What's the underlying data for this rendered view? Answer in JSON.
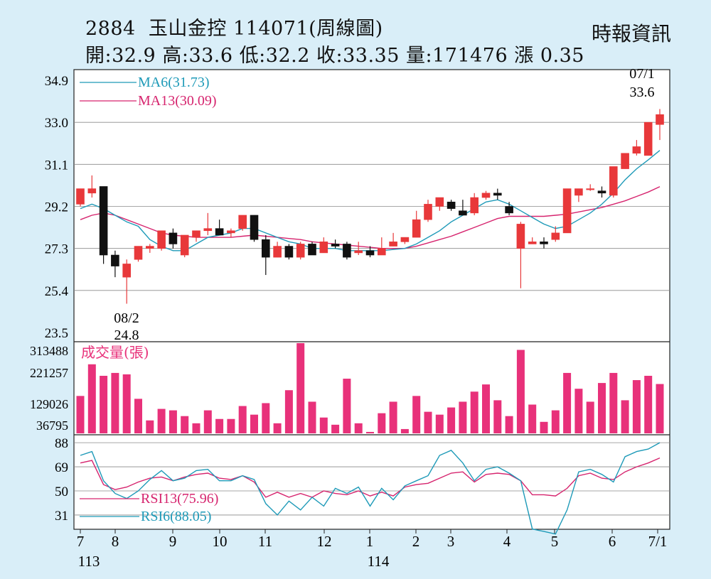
{
  "header": {
    "code": "2884",
    "name": "玉山金控",
    "date_code": "114071",
    "chart_kind": "(周線圖)",
    "source": "時報資訊",
    "open_label": "開:",
    "open": "32.9",
    "high_label": "高:",
    "high": "33.6",
    "low_label": "低:",
    "low": "32.2",
    "close_label": "收:",
    "close": "33.35",
    "volume_label": "量:",
    "volume": "171476",
    "change_label": "漲",
    "change": "0.35"
  },
  "colors": {
    "background": "#d9eef8",
    "plot_bg": "#ffffff",
    "up": "#e8383a",
    "down": "#111111",
    "volume": "#e8317a",
    "ma6": "#1e9ab8",
    "ma13": "#d6246e",
    "rsi13": "#d6246e",
    "rsi6": "#1e9ab8",
    "grid": "#8a8a8a"
  },
  "chart_data": [
    {
      "type": "candlestick",
      "title": "2884 玉山金控 114071(周線圖)",
      "ylim": [
        23.5,
        34.9
      ],
      "yticks": [
        "34.9",
        "33.0",
        "31.1",
        "29.2",
        "27.3",
        "25.4",
        "23.5"
      ],
      "x_month_labels": [
        "7",
        "8",
        "9",
        "10",
        "11",
        "12",
        "1",
        "2",
        "3",
        "4",
        "5",
        "6",
        "7/1"
      ],
      "x_year_labels": [
        "113",
        "114"
      ],
      "legend": [
        {
          "label": "MA6(31.73)",
          "color": "#1e9ab8"
        },
        {
          "label": "MA13(30.09)",
          "color": "#d6246e"
        }
      ],
      "annotations": [
        {
          "date": "07/1",
          "value": "33.6",
          "note": "high"
        },
        {
          "date": "08/2",
          "value": "24.8",
          "note": "low"
        }
      ],
      "ohlc": [
        [
          29.3,
          30.0,
          29.2,
          30.0
        ],
        [
          29.8,
          30.6,
          29.6,
          30.0
        ],
        [
          30.1,
          30.1,
          26.6,
          27.0
        ],
        [
          27.0,
          27.2,
          26.0,
          26.5
        ],
        [
          26.0,
          26.8,
          24.8,
          26.6
        ],
        [
          26.8,
          27.4,
          26.7,
          27.4
        ],
        [
          27.3,
          27.5,
          27.1,
          27.4
        ],
        [
          27.3,
          28.1,
          27.2,
          28.1
        ],
        [
          28.0,
          28.2,
          27.3,
          27.5
        ],
        [
          27.0,
          27.9,
          26.9,
          27.9
        ],
        [
          27.8,
          28.1,
          27.6,
          28.1
        ],
        [
          28.1,
          28.9,
          27.9,
          28.2
        ],
        [
          28.2,
          28.6,
          27.9,
          27.9
        ],
        [
          28.0,
          28.2,
          27.8,
          28.1
        ],
        [
          28.2,
          28.8,
          28.1,
          28.8
        ],
        [
          28.8,
          28.8,
          27.6,
          27.7
        ],
        [
          27.7,
          27.9,
          26.1,
          26.9
        ],
        [
          26.9,
          27.6,
          26.9,
          27.4
        ],
        [
          27.4,
          27.5,
          26.8,
          26.9
        ],
        [
          26.9,
          27.6,
          26.8,
          27.5
        ],
        [
          27.5,
          27.6,
          27.0,
          27.0
        ],
        [
          27.1,
          27.8,
          27.1,
          27.6
        ],
        [
          27.5,
          27.7,
          27.3,
          27.4
        ],
        [
          27.5,
          27.6,
          26.8,
          26.9
        ],
        [
          27.1,
          27.6,
          27.0,
          27.2
        ],
        [
          27.2,
          27.4,
          26.9,
          27.0
        ],
        [
          27.0,
          27.8,
          27.0,
          27.3
        ],
        [
          27.4,
          28.0,
          27.4,
          27.6
        ],
        [
          27.6,
          27.8,
          27.5,
          27.8
        ],
        [
          27.8,
          29.0,
          27.8,
          28.6
        ],
        [
          28.6,
          29.5,
          28.5,
          29.3
        ],
        [
          29.2,
          29.6,
          29.0,
          29.6
        ],
        [
          29.4,
          29.5,
          29.0,
          29.1
        ],
        [
          29.0,
          29.5,
          28.8,
          28.8
        ],
        [
          28.9,
          29.8,
          28.8,
          29.6
        ],
        [
          29.6,
          29.9,
          29.5,
          29.8
        ],
        [
          29.8,
          30.0,
          29.5,
          29.7
        ],
        [
          29.2,
          29.4,
          28.8,
          28.9
        ],
        [
          27.3,
          28.5,
          25.5,
          28.4
        ],
        [
          27.5,
          27.8,
          27.5,
          27.6
        ],
        [
          27.6,
          27.8,
          27.3,
          27.5
        ],
        [
          27.7,
          28.3,
          27.6,
          28.0
        ],
        [
          28.0,
          30.0,
          28.0,
          30.0
        ],
        [
          29.7,
          30.0,
          29.4,
          30.0
        ],
        [
          30.0,
          30.2,
          29.9,
          30.0
        ],
        [
          29.9,
          30.1,
          29.6,
          29.8
        ],
        [
          29.7,
          31.0,
          29.6,
          31.0
        ],
        [
          30.9,
          31.6,
          30.9,
          31.6
        ],
        [
          31.6,
          32.2,
          31.5,
          31.9
        ],
        [
          31.5,
          33.0,
          31.5,
          33.0
        ],
        [
          32.9,
          33.6,
          32.2,
          33.35
        ]
      ],
      "ma6": [
        29.1,
        29.3,
        29.1,
        28.8,
        28.5,
        28.3,
        27.7,
        27.4,
        27.2,
        27.2,
        27.5,
        27.8,
        27.9,
        28.0,
        28.2,
        28.2,
        28.0,
        27.8,
        27.6,
        27.5,
        27.3,
        27.3,
        27.3,
        27.2,
        27.2,
        27.2,
        27.2,
        27.25,
        27.3,
        27.5,
        27.8,
        28.1,
        28.5,
        28.8,
        29.1,
        29.4,
        29.5,
        29.3,
        29.0,
        28.7,
        28.4,
        28.2,
        28.3,
        28.6,
        28.9,
        29.3,
        29.8,
        30.4,
        30.9,
        31.3,
        31.73
      ],
      "ma13": [
        28.6,
        28.8,
        28.9,
        28.8,
        28.6,
        28.4,
        28.2,
        28.0,
        27.9,
        27.85,
        27.8,
        27.8,
        27.8,
        27.8,
        27.85,
        27.9,
        27.85,
        27.8,
        27.75,
        27.7,
        27.6,
        27.55,
        27.5,
        27.45,
        27.4,
        27.35,
        27.3,
        27.3,
        27.3,
        27.4,
        27.55,
        27.7,
        27.85,
        28.05,
        28.25,
        28.45,
        28.65,
        28.75,
        28.75,
        28.75,
        28.75,
        28.8,
        28.85,
        28.95,
        29.05,
        29.15,
        29.3,
        29.45,
        29.65,
        29.85,
        30.09
      ]
    },
    {
      "type": "bar",
      "title": "成交量(張)",
      "yticks": [
        "313488",
        "221257",
        "129026",
        "36795"
      ],
      "ylim": [
        0,
        313488
      ],
      "values": [
        130000,
        240000,
        200000,
        210000,
        205000,
        120000,
        45000,
        85000,
        80000,
        60000,
        35000,
        80000,
        50000,
        50000,
        95000,
        65000,
        105000,
        35000,
        150000,
        313488,
        110000,
        55000,
        30000,
        190000,
        35000,
        5000,
        70000,
        110000,
        15000,
        130000,
        75000,
        65000,
        90000,
        110000,
        145000,
        170000,
        115000,
        60000,
        290000,
        100000,
        40000,
        80000,
        210000,
        155000,
        110000,
        175000,
        210000,
        115000,
        185000,
        200000,
        171476
      ]
    },
    {
      "type": "line",
      "yticks": [
        "88",
        "69",
        "50",
        "31"
      ],
      "ylim": [
        22,
        92
      ],
      "legend": [
        {
          "label": "RSI13(75.96)",
          "color": "#d6246e"
        },
        {
          "label": "RSI6(88.05)",
          "color": "#1e9ab8"
        }
      ],
      "series": [
        {
          "name": "RSI13(75.96)",
          "values": [
            72,
            74,
            55,
            51,
            53,
            57,
            60,
            61,
            58,
            61,
            63,
            64,
            60,
            59,
            62,
            57,
            45,
            49,
            45,
            48,
            45,
            50,
            48,
            47,
            50,
            46,
            49,
            46,
            53,
            55,
            56,
            60,
            64,
            65,
            57,
            63,
            64,
            63,
            58,
            47,
            47,
            46,
            52,
            62,
            64,
            60,
            59,
            65,
            69,
            72,
            75.96
          ]
        },
        {
          "name": "RSI6(88.05)",
          "values": [
            78,
            81,
            58,
            48,
            44,
            50,
            59,
            66,
            58,
            60,
            66,
            67,
            58,
            58,
            62,
            59,
            40,
            31,
            42,
            35,
            45,
            38,
            52,
            48,
            53,
            38,
            52,
            43,
            54,
            58,
            62,
            78,
            82,
            72,
            58,
            67,
            69,
            64,
            58,
            20,
            18,
            16,
            35,
            65,
            67,
            63,
            57,
            77,
            81,
            83,
            88.05
          ]
        }
      ]
    }
  ]
}
